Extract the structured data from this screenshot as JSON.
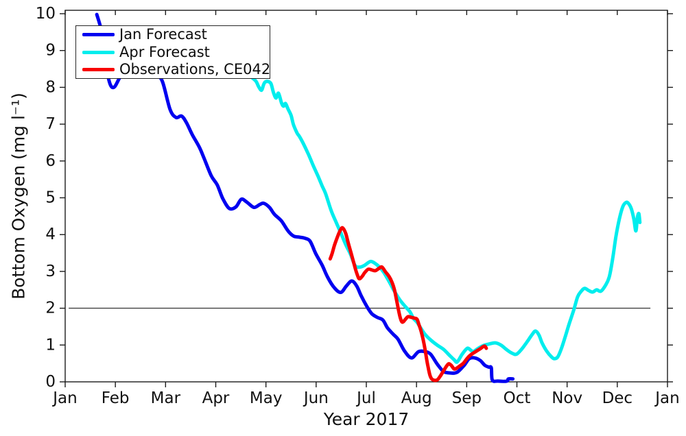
{
  "figure": {
    "background": "#ffffff",
    "xlabel": "Year 2017",
    "ylabel": "Bottom Oxygen (mg l⁻¹)",
    "axis_color": "#1a1a1a",
    "tick_label_color": "#111111"
  },
  "legend": {
    "entries": [
      {
        "label": "Jan Forecast"
      },
      {
        "label": "Apr Forecast"
      },
      {
        "label": "Observations, CE042"
      }
    ]
  },
  "chart_data": {
    "type": "line",
    "title": "",
    "xlabel": "Year 2017",
    "ylabel": "Bottom Oxygen (mg l⁻¹)",
    "x_axis": {
      "unit": "months from Jan 1 2017",
      "tick_positions": [
        0,
        1,
        2,
        3,
        4,
        5,
        6,
        7,
        8,
        9,
        10,
        11,
        12
      ],
      "tick_labels": [
        "Jan",
        "Feb",
        "Mar",
        "Apr",
        "May",
        "Jun",
        "Jul",
        "Aug",
        "Sep",
        "Oct",
        "Nov",
        "Dec",
        "Jan"
      ]
    },
    "y_axis": {
      "range": [
        0,
        10
      ],
      "ticks": [
        0,
        1,
        2,
        3,
        4,
        5,
        6,
        7,
        8,
        9,
        10
      ]
    },
    "grid": false,
    "legend_position": "upper-left",
    "reference_line": {
      "y": 2,
      "x_start": 0.07,
      "x_end": 11.66,
      "color": "#404040",
      "width": 1.4
    },
    "series": [
      {
        "name": "Jan Forecast",
        "color": "#0000f0",
        "width": 5,
        "points": [
          [
            0.63,
            9.98
          ],
          [
            0.72,
            9.55
          ],
          [
            0.79,
            8.95
          ],
          [
            0.87,
            8.2
          ],
          [
            0.97,
            8.0
          ],
          [
            1.13,
            8.35
          ],
          [
            1.37,
            8.6
          ],
          [
            1.6,
            8.55
          ],
          [
            1.82,
            8.33
          ],
          [
            1.94,
            8.15
          ],
          [
            2.09,
            7.4
          ],
          [
            2.21,
            7.18
          ],
          [
            2.32,
            7.22
          ],
          [
            2.42,
            7.03
          ],
          [
            2.53,
            6.72
          ],
          [
            2.67,
            6.38
          ],
          [
            2.76,
            6.1
          ],
          [
            2.91,
            5.6
          ],
          [
            3.03,
            5.35
          ],
          [
            3.14,
            4.98
          ],
          [
            3.27,
            4.71
          ],
          [
            3.4,
            4.75
          ],
          [
            3.51,
            4.96
          ],
          [
            3.62,
            4.88
          ],
          [
            3.76,
            4.74
          ],
          [
            3.88,
            4.82
          ],
          [
            3.96,
            4.85
          ],
          [
            4.07,
            4.74
          ],
          [
            4.17,
            4.55
          ],
          [
            4.31,
            4.37
          ],
          [
            4.44,
            4.1
          ],
          [
            4.55,
            3.96
          ],
          [
            4.67,
            3.93
          ],
          [
            4.78,
            3.9
          ],
          [
            4.88,
            3.82
          ],
          [
            4.99,
            3.49
          ],
          [
            5.12,
            3.17
          ],
          [
            5.23,
            2.84
          ],
          [
            5.36,
            2.56
          ],
          [
            5.49,
            2.43
          ],
          [
            5.6,
            2.6
          ],
          [
            5.71,
            2.74
          ],
          [
            5.81,
            2.6
          ],
          [
            5.9,
            2.33
          ],
          [
            6.01,
            2.05
          ],
          [
            6.11,
            1.85
          ],
          [
            6.22,
            1.75
          ],
          [
            6.33,
            1.68
          ],
          [
            6.42,
            1.47
          ],
          [
            6.53,
            1.3
          ],
          [
            6.63,
            1.16
          ],
          [
            6.76,
            0.84
          ],
          [
            6.9,
            0.65
          ],
          [
            7.04,
            0.82
          ],
          [
            7.17,
            0.82
          ],
          [
            7.28,
            0.75
          ],
          [
            7.42,
            0.47
          ],
          [
            7.54,
            0.28
          ],
          [
            7.68,
            0.24
          ],
          [
            7.81,
            0.26
          ],
          [
            7.95,
            0.45
          ],
          [
            8.05,
            0.63
          ],
          [
            8.16,
            0.65
          ],
          [
            8.27,
            0.58
          ],
          [
            8.36,
            0.45
          ],
          [
            8.44,
            0.4
          ],
          [
            8.49,
            0.38
          ],
          [
            8.51,
            0.05
          ],
          [
            8.62,
            0.02
          ],
          [
            8.8,
            0.02
          ],
          [
            8.83,
            0.08
          ],
          [
            8.92,
            0.08
          ]
        ]
      },
      {
        "name": "Apr Forecast",
        "color": "#00eded",
        "width": 5,
        "points": [
          [
            3.1,
            9.3
          ],
          [
            3.25,
            9.0
          ],
          [
            3.4,
            8.8
          ],
          [
            3.55,
            8.55
          ],
          [
            3.68,
            8.32
          ],
          [
            3.8,
            8.17
          ],
          [
            3.85,
            8.03
          ],
          [
            3.91,
            7.92
          ],
          [
            3.95,
            8.06
          ],
          [
            3.98,
            8.14
          ],
          [
            4.04,
            8.16
          ],
          [
            4.1,
            8.1
          ],
          [
            4.15,
            7.86
          ],
          [
            4.2,
            7.71
          ],
          [
            4.25,
            7.84
          ],
          [
            4.31,
            7.58
          ],
          [
            4.35,
            7.49
          ],
          [
            4.39,
            7.56
          ],
          [
            4.44,
            7.41
          ],
          [
            4.5,
            7.24
          ],
          [
            4.55,
            6.98
          ],
          [
            4.62,
            6.76
          ],
          [
            4.67,
            6.66
          ],
          [
            4.76,
            6.43
          ],
          [
            4.85,
            6.17
          ],
          [
            4.95,
            5.85
          ],
          [
            5.04,
            5.58
          ],
          [
            5.12,
            5.32
          ],
          [
            5.19,
            5.11
          ],
          [
            5.3,
            4.65
          ],
          [
            5.4,
            4.33
          ],
          [
            5.49,
            4.05
          ],
          [
            5.59,
            3.73
          ],
          [
            5.69,
            3.45
          ],
          [
            5.78,
            3.15
          ],
          [
            5.88,
            3.12
          ],
          [
            5.97,
            3.17
          ],
          [
            6.08,
            3.27
          ],
          [
            6.16,
            3.23
          ],
          [
            6.26,
            3.12
          ],
          [
            6.35,
            2.97
          ],
          [
            6.46,
            2.71
          ],
          [
            6.56,
            2.46
          ],
          [
            6.66,
            2.24
          ],
          [
            6.76,
            2.07
          ],
          [
            6.87,
            1.9
          ],
          [
            6.94,
            1.72
          ],
          [
            7.01,
            1.62
          ],
          [
            7.08,
            1.47
          ],
          [
            7.17,
            1.29
          ],
          [
            7.28,
            1.14
          ],
          [
            7.41,
            1.0
          ],
          [
            7.54,
            0.88
          ],
          [
            7.65,
            0.73
          ],
          [
            7.75,
            0.6
          ],
          [
            7.81,
            0.54
          ],
          [
            7.91,
            0.75
          ],
          [
            8.01,
            0.91
          ],
          [
            8.08,
            0.86
          ],
          [
            8.13,
            0.82
          ],
          [
            8.23,
            0.91
          ],
          [
            8.34,
            0.99
          ],
          [
            8.45,
            1.03
          ],
          [
            8.57,
            1.06
          ],
          [
            8.68,
            1.0
          ],
          [
            8.79,
            0.88
          ],
          [
            8.9,
            0.78
          ],
          [
            8.99,
            0.75
          ],
          [
            9.09,
            0.88
          ],
          [
            9.2,
            1.08
          ],
          [
            9.3,
            1.28
          ],
          [
            9.37,
            1.38
          ],
          [
            9.44,
            1.27
          ],
          [
            9.5,
            1.06
          ],
          [
            9.59,
            0.84
          ],
          [
            9.68,
            0.69
          ],
          [
            9.74,
            0.63
          ],
          [
            9.81,
            0.67
          ],
          [
            9.88,
            0.88
          ],
          [
            9.96,
            1.21
          ],
          [
            10.04,
            1.57
          ],
          [
            10.13,
            1.94
          ],
          [
            10.21,
            2.31
          ],
          [
            10.28,
            2.46
          ],
          [
            10.35,
            2.54
          ],
          [
            10.43,
            2.48
          ],
          [
            10.51,
            2.44
          ],
          [
            10.59,
            2.5
          ],
          [
            10.67,
            2.46
          ],
          [
            10.76,
            2.61
          ],
          [
            10.84,
            2.85
          ],
          [
            10.91,
            3.36
          ],
          [
            10.97,
            3.92
          ],
          [
            11.04,
            4.42
          ],
          [
            11.11,
            4.76
          ],
          [
            11.17,
            4.87
          ],
          [
            11.22,
            4.85
          ],
          [
            11.28,
            4.7
          ],
          [
            11.33,
            4.42
          ],
          [
            11.37,
            4.1
          ],
          [
            11.4,
            4.46
          ],
          [
            11.43,
            4.57
          ],
          [
            11.45,
            4.33
          ]
        ]
      },
      {
        "name": "Observations, CE042",
        "color": "#f80000",
        "width": 5,
        "points": [
          [
            5.28,
            3.34
          ],
          [
            5.32,
            3.49
          ],
          [
            5.37,
            3.73
          ],
          [
            5.44,
            3.99
          ],
          [
            5.49,
            4.14
          ],
          [
            5.53,
            4.18
          ],
          [
            5.59,
            4.03
          ],
          [
            5.64,
            3.77
          ],
          [
            5.71,
            3.43
          ],
          [
            5.78,
            3.08
          ],
          [
            5.82,
            2.91
          ],
          [
            5.86,
            2.8
          ],
          [
            5.92,
            2.87
          ],
          [
            5.97,
            2.97
          ],
          [
            6.04,
            3.06
          ],
          [
            6.11,
            3.04
          ],
          [
            6.18,
            3.02
          ],
          [
            6.25,
            3.08
          ],
          [
            6.31,
            3.12
          ],
          [
            6.38,
            2.99
          ],
          [
            6.45,
            2.87
          ],
          [
            6.51,
            2.71
          ],
          [
            6.56,
            2.5
          ],
          [
            6.6,
            2.24
          ],
          [
            6.64,
            1.96
          ],
          [
            6.68,
            1.72
          ],
          [
            6.72,
            1.62
          ],
          [
            6.78,
            1.7
          ],
          [
            6.83,
            1.77
          ],
          [
            6.9,
            1.75
          ],
          [
            6.96,
            1.73
          ],
          [
            7.01,
            1.7
          ],
          [
            7.05,
            1.55
          ],
          [
            7.09,
            1.38
          ],
          [
            7.13,
            1.16
          ],
          [
            7.17,
            0.88
          ],
          [
            7.2,
            0.63
          ],
          [
            7.23,
            0.41
          ],
          [
            7.27,
            0.17
          ],
          [
            7.31,
            0.07
          ],
          [
            7.37,
            0.04
          ],
          [
            7.42,
            0.06
          ],
          [
            7.48,
            0.17
          ],
          [
            7.53,
            0.28
          ],
          [
            7.59,
            0.41
          ],
          [
            7.64,
            0.49
          ],
          [
            7.69,
            0.45
          ],
          [
            7.75,
            0.35
          ],
          [
            7.8,
            0.37
          ],
          [
            7.86,
            0.43
          ],
          [
            7.93,
            0.5
          ],
          [
            8.0,
            0.62
          ],
          [
            8.06,
            0.71
          ],
          [
            8.13,
            0.78
          ],
          [
            8.2,
            0.84
          ],
          [
            8.27,
            0.9
          ],
          [
            8.32,
            0.95
          ],
          [
            8.36,
            0.97
          ],
          [
            8.39,
            0.91
          ]
        ]
      }
    ]
  }
}
